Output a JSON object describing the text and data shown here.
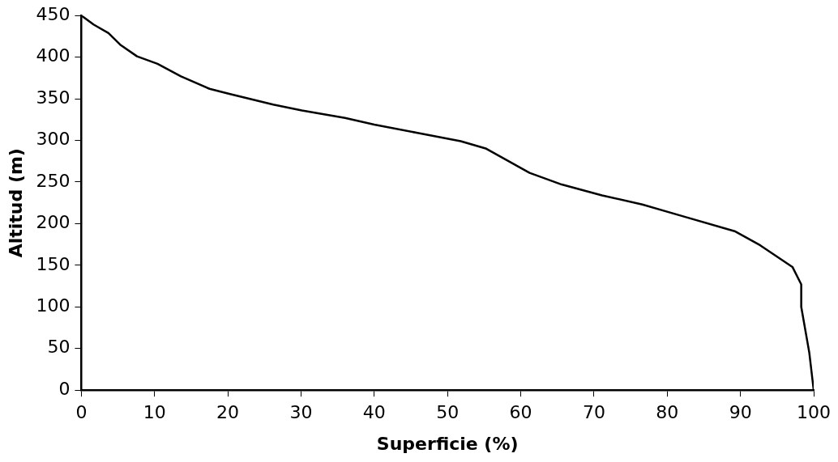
{
  "chart_data": {
    "type": "line",
    "xlabel": "Superficie (%)",
    "ylabel": "Altitud (m)",
    "x": [
      0,
      1.7,
      3.7,
      5.3,
      7.6,
      10.4,
      13.6,
      17.5,
      20.2,
      26.2,
      30.1,
      36,
      40,
      45.9,
      51.8,
      55.3,
      61.2,
      65.6,
      71.1,
      76.6,
      81.7,
      89.2,
      92.7,
      97.1,
      98.3,
      98.3,
      99.4,
      100
    ],
    "series": [
      {
        "color": "#000000",
        "values": [
          450,
          439,
          429,
          415,
          401,
          392,
          377,
          362,
          356,
          343,
          336,
          327,
          319,
          309,
          299,
          290,
          261,
          247,
          234,
          223,
          210,
          191,
          174,
          148,
          127,
          100,
          45,
          0
        ]
      }
    ],
    "xlim": [
      0,
      100
    ],
    "xticks": [
      0,
      10,
      20,
      30,
      40,
      50,
      60,
      70,
      80,
      90,
      100
    ],
    "ylim": [
      0,
      450
    ],
    "yticks": [
      0,
      50,
      100,
      150,
      200,
      250,
      300,
      350,
      400,
      450
    ],
    "grid": false,
    "legend": false,
    "marker": "none",
    "line_style": "solid"
  }
}
